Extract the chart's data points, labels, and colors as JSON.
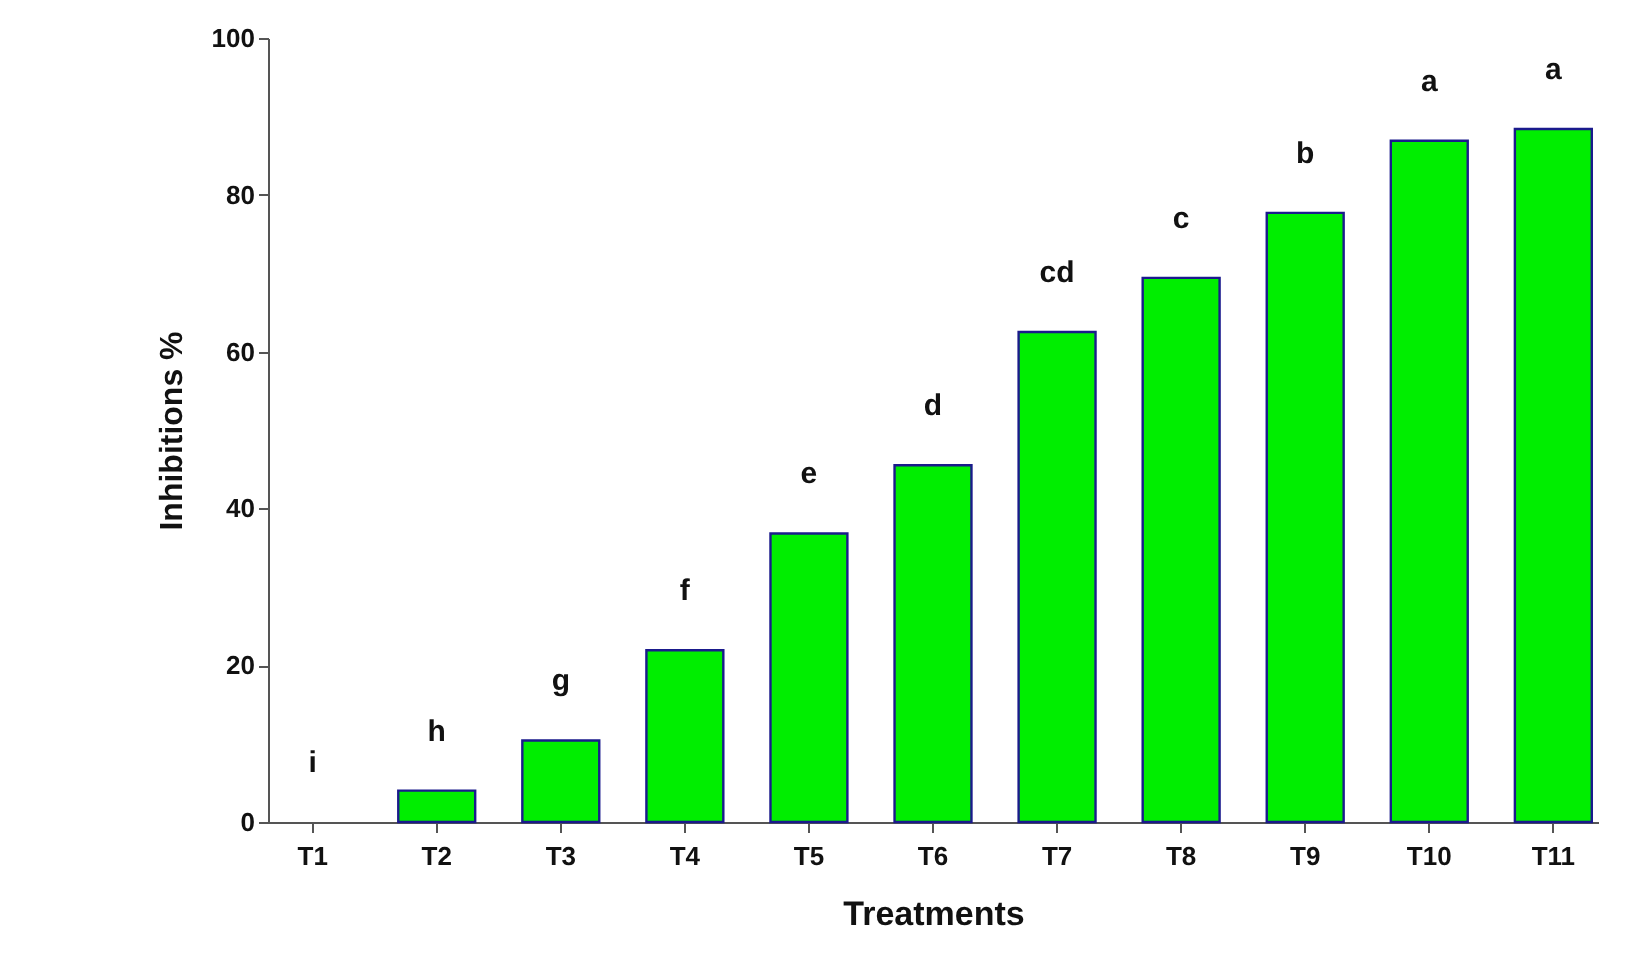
{
  "chart_data": {
    "type": "bar",
    "xlabel": "Treatments",
    "ylabel": "Inhibitions %",
    "categories": [
      "T1",
      "T2",
      "T3",
      "T4",
      "T5",
      "T6",
      "T7",
      "T8",
      "T9",
      "T10",
      "T11"
    ],
    "values": [
      null,
      4.0,
      10.4,
      21.9,
      36.8,
      45.5,
      62.5,
      69.4,
      77.7,
      86.9,
      88.4
    ],
    "color": "#00ee00",
    "ylim": [
      0,
      100
    ],
    "yticks": [
      0,
      20,
      40,
      60,
      80,
      100
    ],
    "grid": false,
    "annotations": [
      "i",
      "h",
      "g",
      "f",
      "e",
      "d",
      "cd",
      "c",
      "b",
      "a",
      "a"
    ]
  }
}
